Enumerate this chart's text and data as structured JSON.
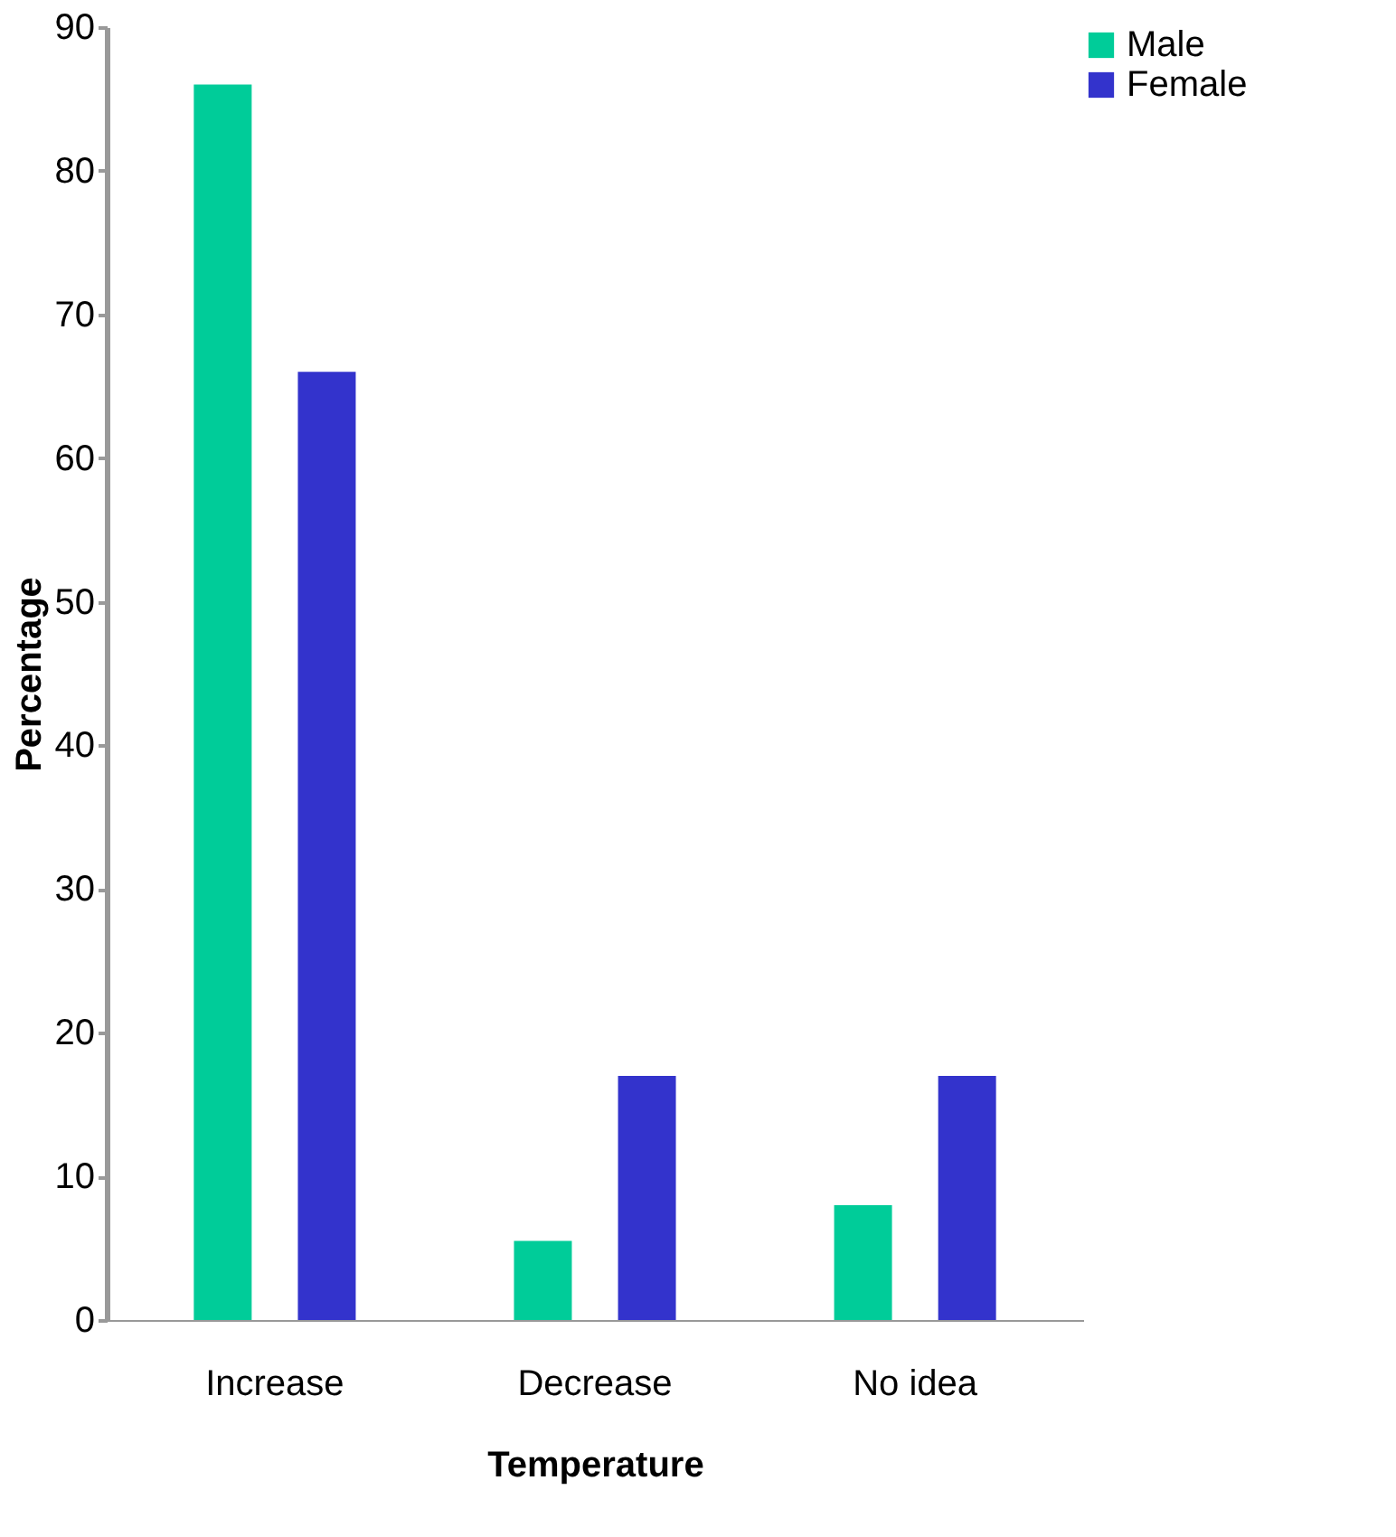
{
  "chart_data": {
    "type": "bar",
    "xlabel": "Temperature",
    "ylabel": "Percentage",
    "categories": [
      "Increase",
      "Decrease",
      "No idea"
    ],
    "series": [
      {
        "name": "Male",
        "color": "#00cc99",
        "values": [
          86,
          5.5,
          8
        ]
      },
      {
        "name": "Female",
        "color": "#3333cc",
        "values": [
          66,
          17,
          17
        ]
      }
    ],
    "ylim": [
      0,
      90
    ],
    "yticks": [
      0,
      10,
      20,
      30,
      40,
      50,
      60,
      70,
      80,
      90
    ],
    "grid": false,
    "legend": "top right"
  }
}
